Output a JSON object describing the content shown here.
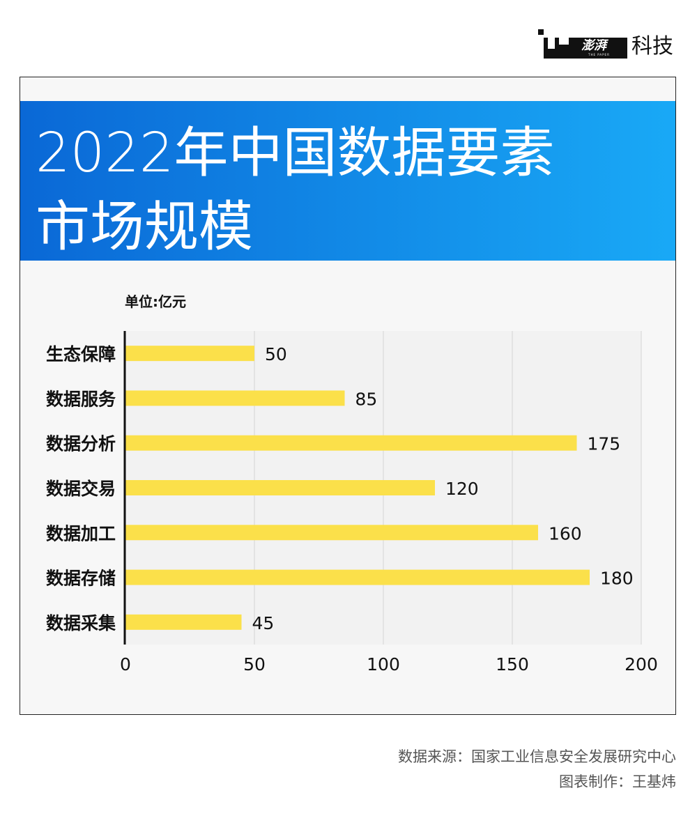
{
  "logo": {
    "brand_cn": "澎湃",
    "brand_en": "THE PAPER",
    "section": "科技"
  },
  "chart_data": {
    "type": "bar",
    "orientation": "horizontal",
    "title": "2022年中国数据要素\n市场规模",
    "unit_label": "单位:亿元",
    "categories": [
      "生态保障",
      "数据服务",
      "数据分析",
      "数据交易",
      "数据加工",
      "数据存储",
      "数据采集"
    ],
    "values": [
      50,
      85,
      175,
      120,
      160,
      180,
      45
    ],
    "xlim": [
      0,
      200
    ],
    "xticks": [
      0,
      50,
      100,
      150,
      200
    ],
    "grid": true,
    "bar_color": "#fbe04a",
    "header_colors": [
      "#0a68d6",
      "#19a9f6"
    ]
  },
  "footer": {
    "source": "数据来源：国家工业信息安全发展研究中心",
    "credit": "图表制作：王基炜"
  }
}
